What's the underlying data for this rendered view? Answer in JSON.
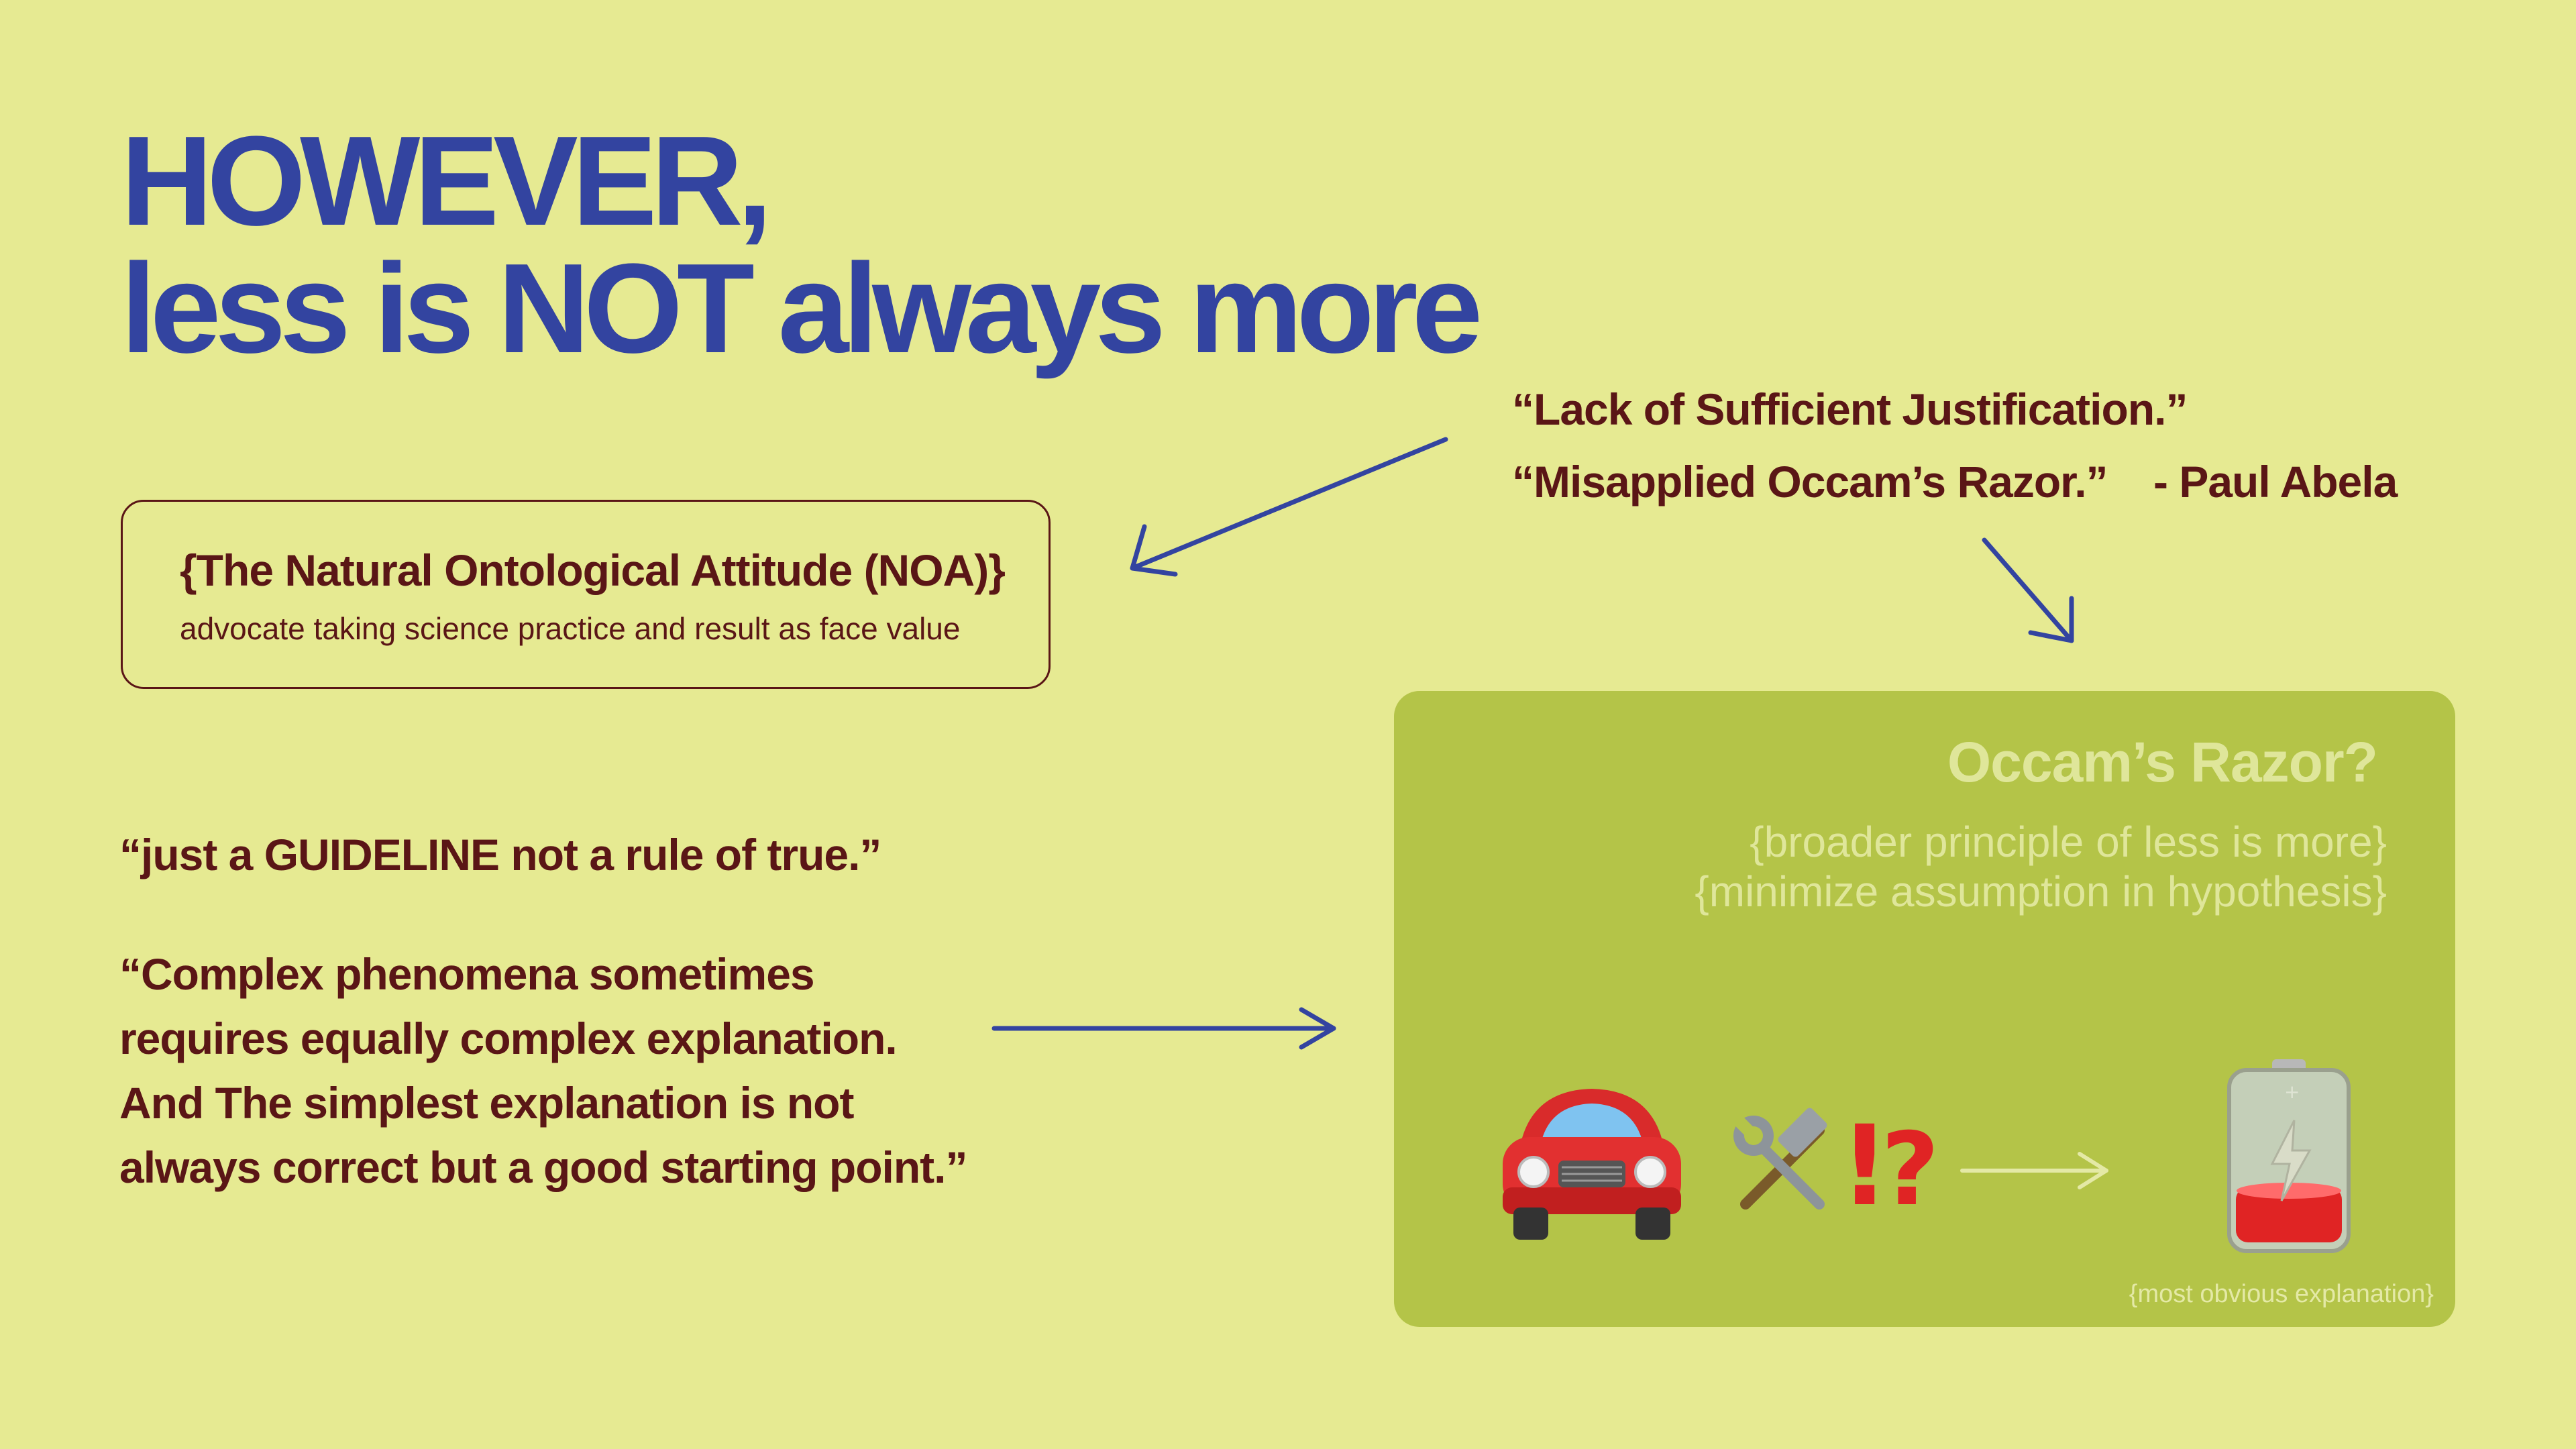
{
  "title": {
    "line1": "HOWEVER,",
    "line2": "less is NOT always more"
  },
  "noa": {
    "title": "{The Natural Ontological Attitude (NOA)}",
    "subtitle": "advocate taking science practice and result as face value"
  },
  "quotes": {
    "justification": "“Lack of Sufficient Justification.”",
    "misapplied": "“Misapplied Occam’s Razor.”",
    "author": "- Paul Abela",
    "guideline": "“just a GUIDELINE not a rule of true.”",
    "complex": [
      "“Complex phenomena sometimes",
      "requires equally complex explanation.",
      "And The simplest explanation is not",
      "always correct but a good starting point.”"
    ]
  },
  "occam": {
    "title": "Occam’s Razor?",
    "principle_line1": "{broader principle of less is more}",
    "principle_line2": "{minimize assumption in hypothesis}",
    "caption": "{most obvious explanation}",
    "icons": [
      "red-car-icon",
      "hammer-and-wrench-icon",
      "exclamation-question-icon",
      "right-arrow-icon",
      "low-battery-icon"
    ]
  },
  "colors": {
    "background": "#e6ea92",
    "title_blue": "#3344a0",
    "text_maroon": "#5a1616",
    "panel_green": "#b4c448",
    "panel_text": "#dfe69a"
  }
}
